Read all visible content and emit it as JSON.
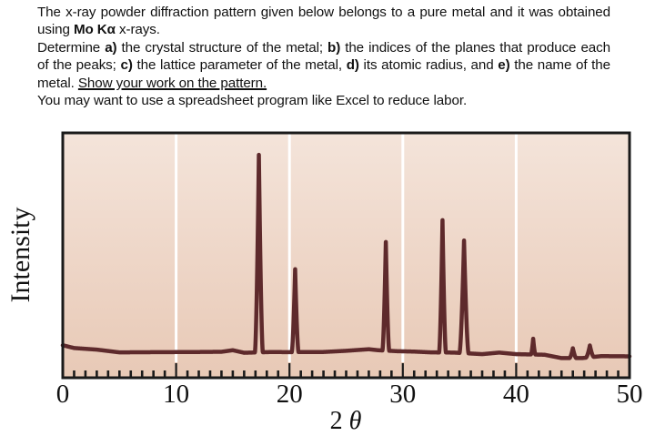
{
  "prompt": {
    "line1": "The x-ray powder diffraction pattern given below belongs to a pure metal and it was obtained using ",
    "radiation": "Mo Kα",
    "line1_end": " x-rays.",
    "q_intro": "Determine ",
    "a_label": "a)",
    "a_text": " the crystal structure of the metal; ",
    "b_label": "b)",
    "b_text": " the indices of the planes that produce each of the peaks; ",
    "c_label": "c)",
    "c_text": " the lattice parameter of the metal, ",
    "d_label": "d)",
    "d_text": " its atomic radius, and ",
    "e_label": "e)",
    "e_text": " the name of the metal. ",
    "show_work": "Show your work on the pattern.",
    "tip": "You may want to use a spreadsheet program like Excel to reduce labor."
  },
  "colors": {
    "bg_top": "#f4e4da",
    "bg_bottom": "#e8c9b6",
    "trace": "#5e2a2c",
    "grid": "#ffffff",
    "frame": "#1a1a1a"
  },
  "chart_data": {
    "type": "line",
    "title": "",
    "xlabel": "2 θ",
    "ylabel": "Intensity",
    "xlim": [
      0,
      50
    ],
    "ylim": [
      0,
      110
    ],
    "grid": true,
    "legend": null,
    "xticks": [
      0,
      10,
      20,
      30,
      40,
      50
    ],
    "xtick_labels": [
      "0",
      "10",
      "20",
      "30",
      "40",
      "50"
    ],
    "minor_tick_step": 1,
    "peaks": [
      {
        "two_theta": 17.3,
        "relative_intensity": 100,
        "width": 0.35
      },
      {
        "two_theta": 20.5,
        "relative_intensity": 42,
        "width": 0.3
      },
      {
        "two_theta": 28.5,
        "relative_intensity": 55,
        "width": 0.3
      },
      {
        "two_theta": 33.5,
        "relative_intensity": 67,
        "width": 0.3
      },
      {
        "two_theta": 35.4,
        "relative_intensity": 57,
        "width": 0.4
      },
      {
        "two_theta": 41.5,
        "relative_intensity": 8,
        "width": 0.2
      },
      {
        "two_theta": 45.0,
        "relative_intensity": 5,
        "width": 0.3
      },
      {
        "two_theta": 46.5,
        "relative_intensity": 6,
        "width": 0.35
      }
    ],
    "background": [
      [
        0,
        4
      ],
      [
        1,
        2.6
      ],
      [
        3,
        1.8
      ],
      [
        5,
        0.4
      ],
      [
        8,
        0.5
      ],
      [
        12,
        0.6
      ],
      [
        14,
        0.7
      ],
      [
        15,
        1.5
      ],
      [
        16,
        0.2
      ],
      [
        18.5,
        0.6
      ],
      [
        20,
        0.5
      ],
      [
        21.5,
        0.6
      ],
      [
        23,
        0.6
      ],
      [
        25,
        1.2
      ],
      [
        27,
        2
      ],
      [
        27.8,
        1.5
      ],
      [
        29.5,
        1.0
      ],
      [
        31,
        0.8
      ],
      [
        32.5,
        0.4
      ],
      [
        34.5,
        0.3
      ],
      [
        37,
        -0.5
      ],
      [
        38.5,
        0.3
      ],
      [
        40,
        -0.5
      ],
      [
        42.5,
        -0.8
      ],
      [
        44,
        -2.5
      ],
      [
        45.8,
        -2.5
      ],
      [
        47.5,
        -1.5
      ],
      [
        50,
        -1.6
      ]
    ]
  }
}
